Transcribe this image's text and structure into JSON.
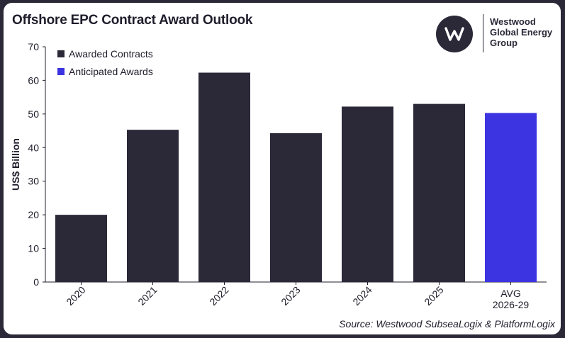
{
  "title": "Offshore EPC Contract Award Outlook",
  "logo": {
    "lines": [
      "Westwood",
      "Global Energy",
      "Group"
    ]
  },
  "source": "Source: Westwood SubseaLogix & PlatformLogix",
  "colors": {
    "awarded": "#2b2838",
    "anticipated": "#3b34e0"
  },
  "chart_data": {
    "type": "bar",
    "title": "Offshore EPC Contract Award Outlook",
    "xlabel": "",
    "ylabel": "US$ Billion",
    "ylim": [
      0,
      70
    ],
    "yticks": [
      0,
      10,
      20,
      30,
      40,
      50,
      60,
      70
    ],
    "grid": false,
    "legend_position": "top-left",
    "categories": [
      "2020",
      "2021",
      "2022",
      "2023",
      "2024",
      "2025",
      "AVG 2026-29"
    ],
    "category_lines": [
      [
        "2020"
      ],
      [
        "2021"
      ],
      [
        "2022"
      ],
      [
        "2023"
      ],
      [
        "2024"
      ],
      [
        "2025"
      ],
      [
        "AVG",
        "2026-29"
      ]
    ],
    "values": [
      20,
      45.3,
      62.3,
      44.3,
      52.2,
      53,
      50.3
    ],
    "series_index": [
      0,
      0,
      0,
      0,
      0,
      0,
      1
    ],
    "series": [
      {
        "name": "Awarded Contracts",
        "color": "#2b2838"
      },
      {
        "name": "Anticipated Awards",
        "color": "#3b34e0"
      }
    ]
  }
}
